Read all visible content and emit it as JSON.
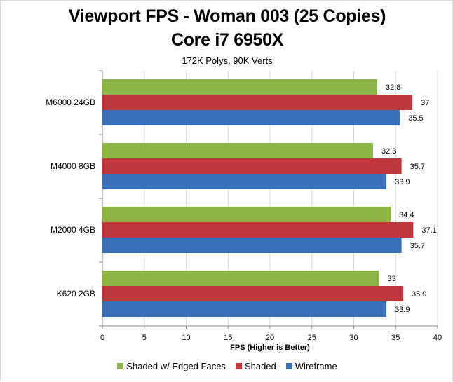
{
  "chart_data": {
    "type": "bar",
    "orientation": "horizontal",
    "title": "Viewport FPS - Woman 003 (25 Copies)",
    "title_line2": "Core i7 6950X",
    "subtitle": "172K Polys, 90K Verts",
    "xlabel": "FPS (Higher is Better)",
    "ylabel": "",
    "xlim": [
      0,
      40
    ],
    "xticks": [
      0,
      5,
      10,
      15,
      20,
      25,
      30,
      35,
      40
    ],
    "grid": true,
    "legend_position": "bottom",
    "categories": [
      "M6000 24GB",
      "M4000 8GB",
      "M2000 4GB",
      "K620 2GB"
    ],
    "series": [
      {
        "name": "Shaded w/ Edged Faces",
        "color": "#8cb447",
        "values": [
          32.8,
          32.3,
          34.4,
          33
        ]
      },
      {
        "name": "Shaded",
        "color": "#c0383d",
        "values": [
          37,
          35.7,
          37.1,
          35.9
        ]
      },
      {
        "name": "Wireframe",
        "color": "#3a6fba",
        "values": [
          35.5,
          33.9,
          35.7,
          33.9
        ]
      }
    ]
  }
}
